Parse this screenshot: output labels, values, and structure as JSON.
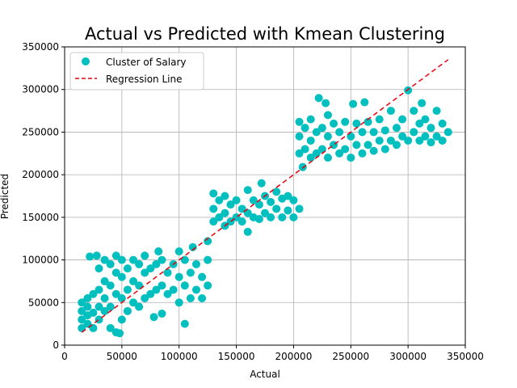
{
  "chart_data": {
    "type": "scatter",
    "title": "Actual vs Predicted with Kmean Clustering",
    "xlabel": "Actual",
    "ylabel": "Predicted",
    "xlim": [
      0,
      350000
    ],
    "ylim": [
      0,
      350000
    ],
    "xticks": [
      0,
      50000,
      100000,
      150000,
      200000,
      250000,
      300000,
      350000
    ],
    "yticks": [
      0,
      50000,
      100000,
      150000,
      200000,
      250000,
      300000,
      350000
    ],
    "xtick_labels": [
      "0",
      "50000",
      "100000",
      "150000",
      "200000",
      "250000",
      "300000",
      "350000"
    ],
    "ytick_labels": [
      "0",
      "50000",
      "100000",
      "150000",
      "200000",
      "250000",
      "300000",
      "350000"
    ],
    "grid": true,
    "legend_position": "top-left",
    "colors": {
      "scatter": "#00bfbf",
      "regression": "#e8000b"
    },
    "series": [
      {
        "name": "Cluster of Salary",
        "kind": "scatter",
        "points": [
          [
            15000,
            20000
          ],
          [
            15000,
            30000
          ],
          [
            15000,
            40000
          ],
          [
            15000,
            50000
          ],
          [
            20000,
            25000
          ],
          [
            20000,
            35000
          ],
          [
            20000,
            45000
          ],
          [
            20000,
            55000
          ],
          [
            22000,
            104000
          ],
          [
            25000,
            20000
          ],
          [
            25000,
            38000
          ],
          [
            25000,
            60000
          ],
          [
            28000,
            105000
          ],
          [
            30000,
            30000
          ],
          [
            30000,
            45000
          ],
          [
            30000,
            65000
          ],
          [
            30000,
            90000
          ],
          [
            35000,
            40000
          ],
          [
            35000,
            55000
          ],
          [
            35000,
            75000
          ],
          [
            35000,
            100000
          ],
          [
            40000,
            20000
          ],
          [
            40000,
            45000
          ],
          [
            40000,
            70000
          ],
          [
            40000,
            95000
          ],
          [
            45000,
            15000
          ],
          [
            48000,
            14000
          ],
          [
            45000,
            60000
          ],
          [
            45000,
            85000
          ],
          [
            45000,
            105000
          ],
          [
            50000,
            30000
          ],
          [
            50000,
            55000
          ],
          [
            50000,
            80000
          ],
          [
            50000,
            100000
          ],
          [
            55000,
            40000
          ],
          [
            55000,
            65000
          ],
          [
            55000,
            90000
          ],
          [
            60000,
            50000
          ],
          [
            60000,
            75000
          ],
          [
            60000,
            100000
          ],
          [
            65000,
            45000
          ],
          [
            65000,
            70000
          ],
          [
            65000,
            95000
          ],
          [
            70000,
            55000
          ],
          [
            70000,
            85000
          ],
          [
            70000,
            105000
          ],
          [
            75000,
            60000
          ],
          [
            75000,
            90000
          ],
          [
            78000,
            33000
          ],
          [
            80000,
            65000
          ],
          [
            80000,
            95000
          ],
          [
            82000,
            110000
          ],
          [
            85000,
            37000
          ],
          [
            85000,
            70000
          ],
          [
            85000,
            100000
          ],
          [
            90000,
            60000
          ],
          [
            90000,
            85000
          ],
          [
            95000,
            65000
          ],
          [
            95000,
            95000
          ],
          [
            100000,
            50000
          ],
          [
            100000,
            80000
          ],
          [
            100000,
            110000
          ],
          [
            105000,
            25000
          ],
          [
            105000,
            70000
          ],
          [
            105000,
            100000
          ],
          [
            110000,
            55000
          ],
          [
            110000,
            85000
          ],
          [
            112000,
            115000
          ],
          [
            115000,
            65000
          ],
          [
            115000,
            95000
          ],
          [
            120000,
            55000
          ],
          [
            120000,
            80000
          ],
          [
            125000,
            70000
          ],
          [
            125000,
            100000
          ],
          [
            125000,
            122000
          ],
          [
            130000,
            145000
          ],
          [
            130000,
            160000
          ],
          [
            130000,
            178000
          ],
          [
            135000,
            150000
          ],
          [
            135000,
            170000
          ],
          [
            140000,
            140000
          ],
          [
            140000,
            155000
          ],
          [
            140000,
            175000
          ],
          [
            145000,
            145000
          ],
          [
            145000,
            165000
          ],
          [
            150000,
            150000
          ],
          [
            150000,
            170000
          ],
          [
            155000,
            145000
          ],
          [
            155000,
            160000
          ],
          [
            160000,
            133000
          ],
          [
            160000,
            155000
          ],
          [
            160000,
            182000
          ],
          [
            165000,
            150000
          ],
          [
            165000,
            170000
          ],
          [
            170000,
            148000
          ],
          [
            170000,
            165000
          ],
          [
            172000,
            190000
          ],
          [
            175000,
            155000
          ],
          [
            175000,
            175000
          ],
          [
            180000,
            150000
          ],
          [
            180000,
            168000
          ],
          [
            185000,
            160000
          ],
          [
            185000,
            180000
          ],
          [
            190000,
            150000
          ],
          [
            190000,
            172000
          ],
          [
            195000,
            158000
          ],
          [
            195000,
            175000
          ],
          [
            200000,
            150000
          ],
          [
            200000,
            170000
          ],
          [
            205000,
            160000
          ],
          [
            205000,
            225000
          ],
          [
            205000,
            245000
          ],
          [
            205000,
            262000
          ],
          [
            208000,
            209000
          ],
          [
            210000,
            230000
          ],
          [
            210000,
            255000
          ],
          [
            215000,
            220000
          ],
          [
            215000,
            240000
          ],
          [
            215000,
            265000
          ],
          [
            220000,
            225000
          ],
          [
            220000,
            250000
          ],
          [
            222000,
            290000
          ],
          [
            225000,
            230000
          ],
          [
            225000,
            255000
          ],
          [
            228000,
            284000
          ],
          [
            230000,
            220000
          ],
          [
            230000,
            245000
          ],
          [
            230000,
            270000
          ],
          [
            235000,
            235000
          ],
          [
            235000,
            260000
          ],
          [
            240000,
            225000
          ],
          [
            240000,
            250000
          ],
          [
            245000,
            230000
          ],
          [
            245000,
            262000
          ],
          [
            250000,
            220000
          ],
          [
            250000,
            245000
          ],
          [
            252000,
            283000
          ],
          [
            255000,
            235000
          ],
          [
            255000,
            260000
          ],
          [
            260000,
            225000
          ],
          [
            260000,
            250000
          ],
          [
            262000,
            285000
          ],
          [
            265000,
            235000
          ],
          [
            265000,
            262000
          ],
          [
            270000,
            228000
          ],
          [
            270000,
            250000
          ],
          [
            275000,
            240000
          ],
          [
            275000,
            265000
          ],
          [
            280000,
            230000
          ],
          [
            280000,
            252000
          ],
          [
            285000,
            240000
          ],
          [
            285000,
            275000
          ],
          [
            290000,
            235000
          ],
          [
            290000,
            255000
          ],
          [
            295000,
            245000
          ],
          [
            295000,
            265000
          ],
          [
            300000,
            299000
          ],
          [
            300000,
            240000
          ],
          [
            305000,
            250000
          ],
          [
            305000,
            275000
          ],
          [
            310000,
            240000
          ],
          [
            310000,
            260000
          ],
          [
            312000,
            284000
          ],
          [
            315000,
            245000
          ],
          [
            315000,
            265000
          ],
          [
            320000,
            238000
          ],
          [
            320000,
            255000
          ],
          [
            325000,
            245000
          ],
          [
            325000,
            275000
          ],
          [
            330000,
            240000
          ],
          [
            330000,
            260000
          ],
          [
            335000,
            250000
          ]
        ]
      },
      {
        "name": "Regression Line",
        "kind": "line",
        "x": [
          15000,
          335000
        ],
        "y": [
          15000,
          335000
        ]
      }
    ]
  }
}
